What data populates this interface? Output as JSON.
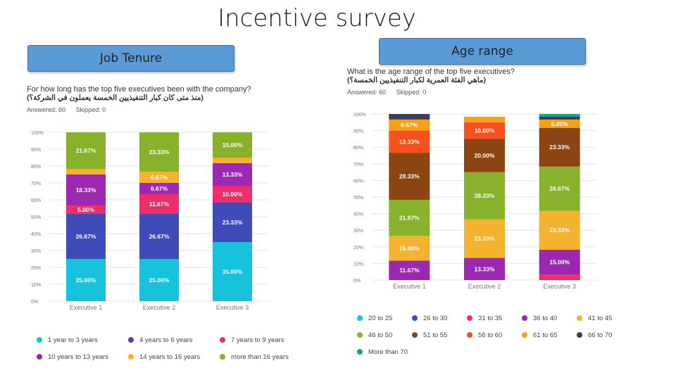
{
  "slide_title": "Incentive survey",
  "left_panel": {
    "header": "Job Tenure",
    "question_en": "For how long has the top five executives been with the company?",
    "question_ar": "(منذ متى كان كبار التنفيذيين الخمسة يعملون في الشركة؟)",
    "answered": "Answered: 60",
    "skipped": "Skipped: 0"
  },
  "right_panel": {
    "header": "Age range",
    "question_en": "What is the age range of the top five executives?",
    "question_ar": "(ماهي الفئة العمرية لكبار التنفيذيين الخمسة؟)",
    "answered": "Answered: 60",
    "skipped": "Skipped: 0"
  },
  "chart_data": [
    {
      "type": "bar",
      "stacked": true,
      "title": "Job Tenure",
      "categories": [
        "Executive 1",
        "Executive 2",
        "Executive 3"
      ],
      "yticks": [
        "0%",
        "10%",
        "20%",
        "30%",
        "40%",
        "50%",
        "60%",
        "70%",
        "80%",
        "90%",
        "100%"
      ],
      "ylim": [
        0,
        100
      ],
      "series": [
        {
          "name": "1 year to 3 years",
          "color": "#17c3dc",
          "values": [
            25.0,
            25.0,
            35.0
          ],
          "labels": [
            "25.00%",
            "25.00%",
            "35.00%"
          ]
        },
        {
          "name": "4 years to 6 years",
          "color": "#3f4bb8",
          "values": [
            26.67,
            26.67,
            23.33
          ],
          "labels": [
            "26.67%",
            "26.67%",
            "23.33%"
          ]
        },
        {
          "name": "7 years to 9 years",
          "color": "#ec2f6b",
          "values": [
            5.0,
            11.67,
            10.0
          ],
          "labels": [
            "5.00%",
            "11.67%",
            "10.00%"
          ]
        },
        {
          "name": "10 years to 13 years",
          "color": "#9c27b0",
          "values": [
            18.33,
            6.67,
            13.33
          ],
          "labels": [
            "18.33%",
            "6.67%",
            "13.33%"
          ]
        },
        {
          "name": "14 years to 16 years",
          "color": "#f4b32f",
          "values": [
            3.33,
            6.67,
            3.33
          ],
          "labels": [
            "",
            "6.67%",
            ""
          ]
        },
        {
          "name": "more than 16 years",
          "color": "#88b22b",
          "values": [
            21.67,
            23.33,
            15.0
          ],
          "labels": [
            "21.67%",
            "23.33%",
            "15.00%"
          ]
        }
      ]
    },
    {
      "type": "bar",
      "stacked": true,
      "title": "Age range",
      "categories": [
        "Executive 1",
        "Executive 2",
        "Executive 3"
      ],
      "yticks": [
        "0%",
        "10%",
        "20%",
        "30%",
        "40%",
        "50%",
        "60%",
        "70%",
        "80%",
        "90%",
        "100%"
      ],
      "ylim": [
        0,
        100
      ],
      "series": [
        {
          "name": "20 to 25",
          "color": "#17c3dc",
          "values": [
            0,
            0,
            0
          ],
          "labels": [
            "",
            "",
            ""
          ]
        },
        {
          "name": "26 to 30",
          "color": "#3f4bb8",
          "values": [
            0,
            0,
            0
          ],
          "labels": [
            "",
            "",
            ""
          ]
        },
        {
          "name": "31 to 35",
          "color": "#ec2f6b",
          "values": [
            0,
            0,
            3.33
          ],
          "labels": [
            "",
            "",
            ""
          ]
        },
        {
          "name": "36 to 40",
          "color": "#9c27b0",
          "values": [
            11.67,
            13.33,
            15.0
          ],
          "labels": [
            "11.67%",
            "13.33%",
            "15.00%"
          ]
        },
        {
          "name": "41 to 45",
          "color": "#f4b32f",
          "values": [
            15.0,
            23.33,
            23.33
          ],
          "labels": [
            "15.00%",
            "23.33%",
            "23.33%"
          ]
        },
        {
          "name": "46 to 50",
          "color": "#88b22b",
          "values": [
            21.67,
            28.33,
            26.67
          ],
          "labels": [
            "21.67%",
            "28.33%",
            "26.67%"
          ]
        },
        {
          "name": "51 to 55",
          "color": "#8b4513",
          "values": [
            28.33,
            20.0,
            23.33
          ],
          "labels": [
            "28.33%",
            "20.00%",
            "23.33%"
          ]
        },
        {
          "name": "56 to 60",
          "color": "#f4511e",
          "values": [
            13.33,
            10.0,
            0
          ],
          "labels": [
            "13.33%",
            "10.00%",
            ""
          ]
        },
        {
          "name": "61 to 65",
          "color": "#f4a11a",
          "values": [
            6.67,
            3.33,
            5.0
          ],
          "labels": [
            "6.67%",
            "",
            "5.00%"
          ]
        },
        {
          "name": "66 to 70",
          "color": "#3d3d57",
          "values": [
            3.33,
            0,
            1.67
          ],
          "labels": [
            "",
            "",
            ""
          ]
        },
        {
          "name": "More than 70",
          "color": "#16a085",
          "values": [
            0,
            0,
            1.67
          ],
          "labels": [
            "",
            "",
            ""
          ]
        }
      ]
    }
  ]
}
